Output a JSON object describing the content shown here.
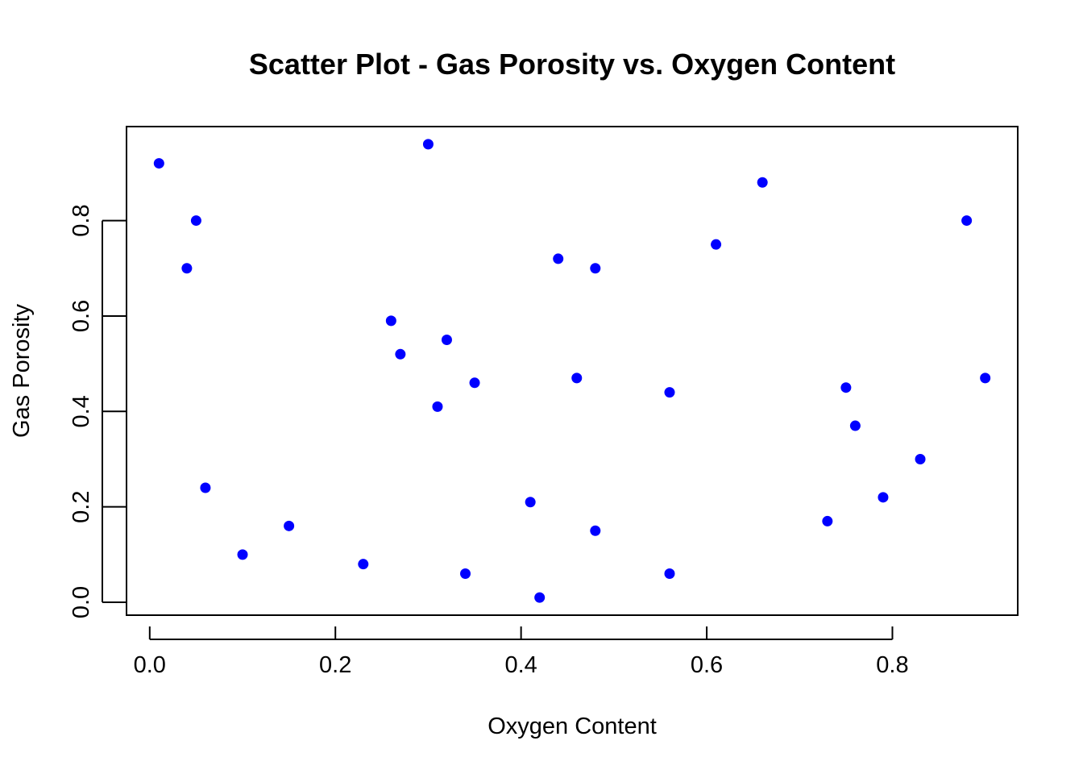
{
  "chart_data": {
    "type": "scatter",
    "title": "Scatter Plot - Gas Porosity vs. Oxygen Content",
    "xlabel": "Oxygen Content",
    "ylabel": "Gas Porosity",
    "xlim": [
      -0.025,
      0.935
    ],
    "ylim": [
      -0.027,
      0.997
    ],
    "x_ticks": [
      0.0,
      0.2,
      0.4,
      0.6,
      0.8
    ],
    "x_tick_labels": [
      "0.0",
      "0.2",
      "0.4",
      "0.6",
      "0.8"
    ],
    "y_ticks": [
      0.0,
      0.2,
      0.4,
      0.6,
      0.8
    ],
    "y_tick_labels": [
      "0.0",
      "0.2",
      "0.4",
      "0.6",
      "0.8"
    ],
    "grid": false,
    "point_color": "#0000ff",
    "points": [
      {
        "x": 0.01,
        "y": 0.92
      },
      {
        "x": 0.04,
        "y": 0.7
      },
      {
        "x": 0.05,
        "y": 0.8
      },
      {
        "x": 0.06,
        "y": 0.24
      },
      {
        "x": 0.1,
        "y": 0.1
      },
      {
        "x": 0.15,
        "y": 0.16
      },
      {
        "x": 0.23,
        "y": 0.08
      },
      {
        "x": 0.26,
        "y": 0.59
      },
      {
        "x": 0.27,
        "y": 0.52
      },
      {
        "x": 0.3,
        "y": 0.96
      },
      {
        "x": 0.31,
        "y": 0.41
      },
      {
        "x": 0.32,
        "y": 0.55
      },
      {
        "x": 0.34,
        "y": 0.06
      },
      {
        "x": 0.35,
        "y": 0.46
      },
      {
        "x": 0.41,
        "y": 0.21
      },
      {
        "x": 0.42,
        "y": 0.01
      },
      {
        "x": 0.44,
        "y": 0.72
      },
      {
        "x": 0.46,
        "y": 0.47
      },
      {
        "x": 0.48,
        "y": 0.7
      },
      {
        "x": 0.48,
        "y": 0.15
      },
      {
        "x": 0.56,
        "y": 0.44
      },
      {
        "x": 0.56,
        "y": 0.06
      },
      {
        "x": 0.61,
        "y": 0.75
      },
      {
        "x": 0.66,
        "y": 0.88
      },
      {
        "x": 0.73,
        "y": 0.17
      },
      {
        "x": 0.75,
        "y": 0.45
      },
      {
        "x": 0.76,
        "y": 0.37
      },
      {
        "x": 0.79,
        "y": 0.22
      },
      {
        "x": 0.83,
        "y": 0.3
      },
      {
        "x": 0.88,
        "y": 0.8
      },
      {
        "x": 0.9,
        "y": 0.47
      }
    ]
  }
}
